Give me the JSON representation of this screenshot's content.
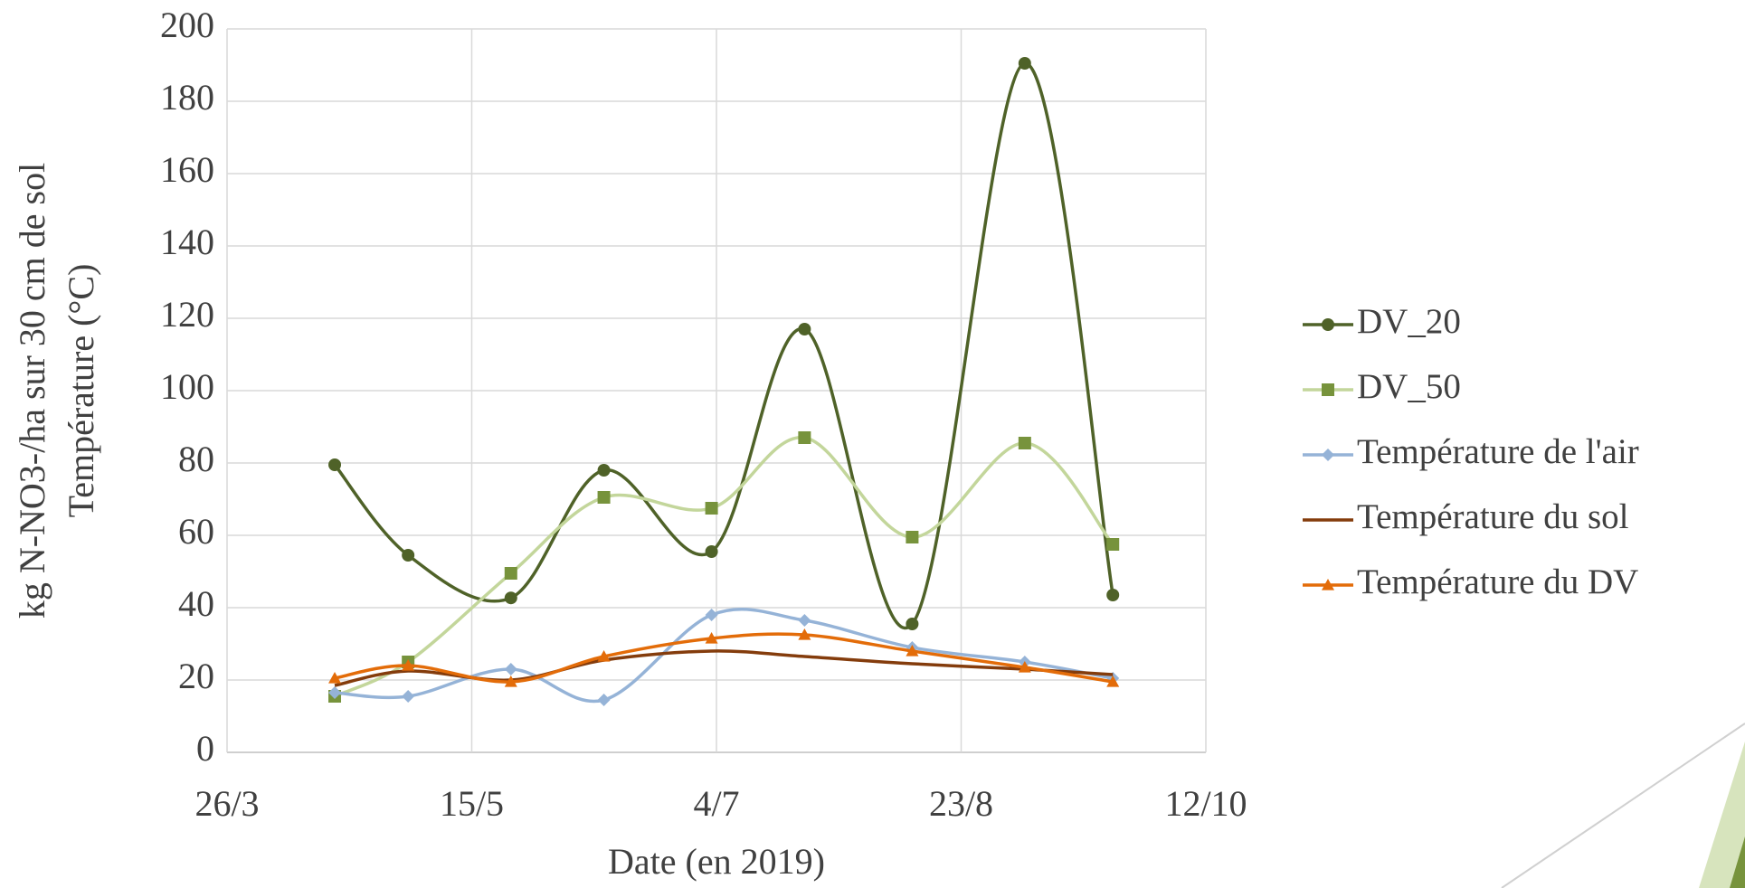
{
  "chart_data": {
    "type": "line",
    "xlabel": "Date (en 2019)",
    "ylabel": [
      "kg N-NO3-/ha sur 30 cm de sol",
      "Température (°C)"
    ],
    "x": [
      107,
      122,
      143,
      162,
      184,
      203,
      225,
      248,
      266
    ],
    "xlim": [
      85,
      285
    ],
    "xticks": [
      {
        "value": 85,
        "label": "26/3"
      },
      {
        "value": 135,
        "label": "15/5"
      },
      {
        "value": 185,
        "label": "4/7"
      },
      {
        "value": 235,
        "label": "23/8"
      },
      {
        "value": 285,
        "label": "12/10"
      }
    ],
    "ylim": [
      0,
      200
    ],
    "yticks": [
      0,
      20,
      40,
      60,
      80,
      100,
      120,
      140,
      160,
      180,
      200
    ],
    "grid": true,
    "smooth": true,
    "legend": "right",
    "series": [
      {
        "name": "DV_20",
        "color": "#4f6228",
        "marker": "circle",
        "values": [
          79.5,
          54.5,
          42.7,
          78,
          55.5,
          117,
          35.5,
          190.5,
          43.5
        ]
      },
      {
        "name": "DV_50",
        "color": "#c3d69b",
        "marker_color": "#77933c",
        "marker": "square",
        "values": [
          15.5,
          25,
          49.5,
          70.5,
          67.5,
          87,
          59.5,
          85.5,
          57.5
        ]
      },
      {
        "name": "Température de l'air",
        "color": "#95b3d7",
        "marker": "diamond",
        "values": [
          16.5,
          15.5,
          23,
          14.5,
          38,
          36.5,
          29,
          25,
          20.5
        ]
      },
      {
        "name": "Température du sol",
        "color": "#843c0c",
        "marker": "none",
        "values": [
          18.5,
          22.5,
          20,
          25.5,
          28,
          26.5,
          24.5,
          23,
          21.5
        ]
      },
      {
        "name": "Température du DV",
        "color": "#e36c09",
        "marker": "triangle",
        "values": [
          20.5,
          24,
          19.5,
          26.5,
          31.5,
          32.5,
          28,
          23.5,
          19.5
        ]
      }
    ]
  }
}
